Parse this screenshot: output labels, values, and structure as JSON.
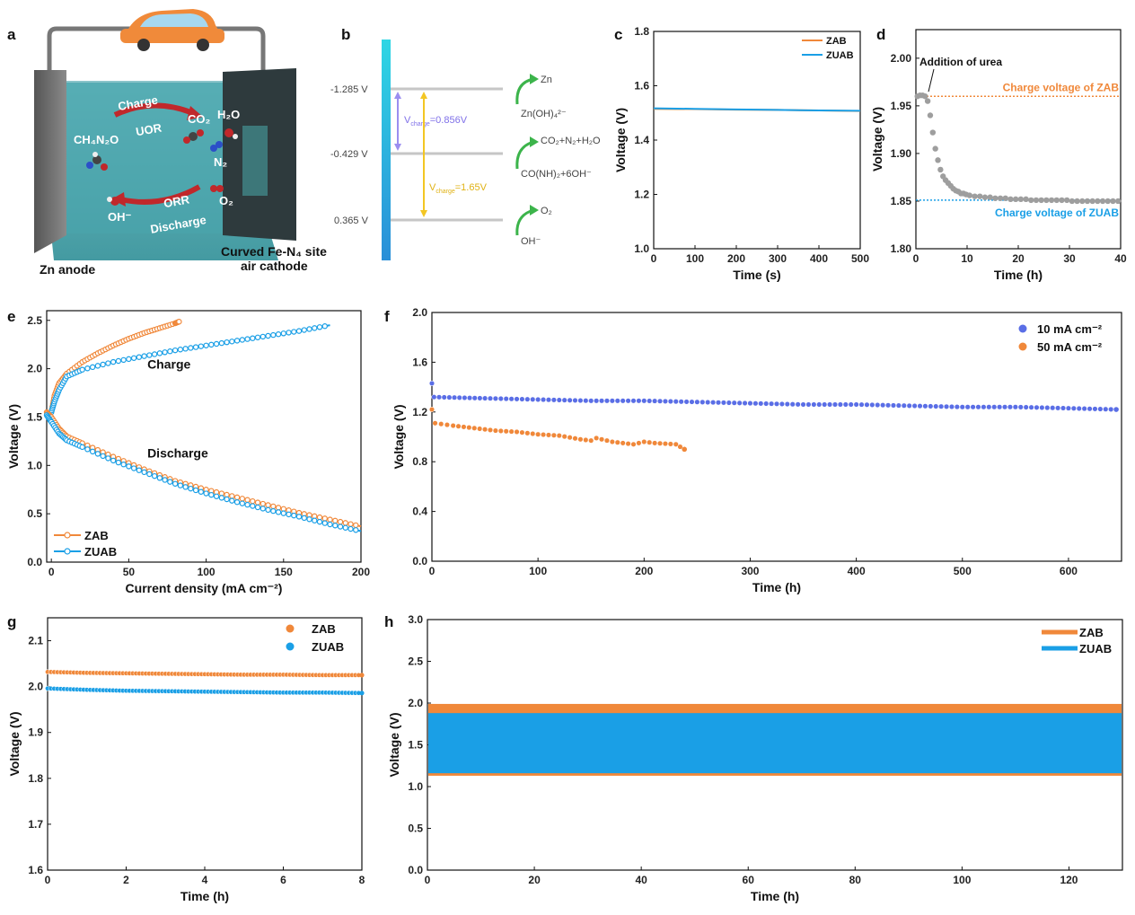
{
  "panel_labels": [
    "a",
    "b",
    "c",
    "d",
    "e",
    "f",
    "g",
    "h"
  ],
  "colors": {
    "zab": "#f0883a",
    "zuab": "#1a9fe6",
    "blue10": "#5a6ee6",
    "grey": "#9e9e9e",
    "yellow": "#f3c623",
    "purple": "#9b8ef0",
    "green": "#3cb44b"
  },
  "schematic": {
    "zn_anode": "Zn anode",
    "cathode_line1": "Curved Fe-N₄ site",
    "cathode_line2": "air cathode",
    "charge": "Charge",
    "uor": "UOR",
    "orr": "ORR",
    "discharge": "Discharge",
    "urea": "CH₄N₂O",
    "co2": "CO₂",
    "h2o": "H₂O",
    "n2": "N₂",
    "o2": "O₂",
    "oh": "OH⁻"
  },
  "energy_diagram": {
    "levels": [
      "-1.285 V",
      "-0.429 V",
      "0.365 V"
    ],
    "v_small_label": "V",
    "v_small_sub": "charge",
    "v_small_value": "=0.856V",
    "v_large_label": "V",
    "v_large_sub": "charge",
    "v_large_value": "=1.65V",
    "r1_top": "Zn",
    "r1_bot": "Zn(OH)₄²⁻",
    "r2_top": "CO₂+N₂+H₂O",
    "r2_bot": "CO(NH)₂+6OH⁻",
    "r3_top": "O₂",
    "r3_bot": "OH⁻"
  },
  "chart_data": [
    {
      "id": "c",
      "type": "line",
      "xlabel": "Time (s)",
      "ylabel": "Voltage (V)",
      "xlim": [
        0,
        500
      ],
      "ylim": [
        1.0,
        1.8
      ],
      "xticks": [
        0,
        100,
        200,
        300,
        400,
        500
      ],
      "yticks": [
        1.0,
        1.2,
        1.4,
        1.6,
        1.8
      ],
      "legend": "top-right",
      "series": [
        {
          "name": "ZAB",
          "x": [
            0,
            100,
            200,
            300,
            400,
            500
          ],
          "y": [
            1.515,
            1.514,
            1.512,
            1.511,
            1.509,
            1.507
          ]
        },
        {
          "name": "ZUAB",
          "x": [
            0,
            100,
            200,
            300,
            400,
            500
          ],
          "y": [
            1.517,
            1.515,
            1.513,
            1.511,
            1.509,
            1.508
          ]
        }
      ]
    },
    {
      "id": "d",
      "type": "scatter",
      "xlabel": "Time (h)",
      "ylabel": "Voltage (V)",
      "xlim": [
        0,
        40
      ],
      "ylim": [
        1.8,
        2.03
      ],
      "xticks": [
        0,
        10,
        20,
        30,
        40
      ],
      "yticks": [
        1.8,
        1.85,
        1.9,
        1.95,
        2.0
      ],
      "annotation": "Addition of urea",
      "ref_lines": [
        {
          "name": "Charge voltage of ZAB",
          "y": 1.96
        },
        {
          "name": "Charge voltage of ZUAB",
          "y": 1.851
        }
      ],
      "series": [
        {
          "name": "data",
          "x": [
            0.3,
            0.8,
            1.3,
            1.8,
            2.3,
            2.8,
            3.3,
            3.8,
            4.3,
            4.8,
            5.3,
            5.8,
            6.3,
            6.8,
            7.3,
            7.8,
            8.3,
            8.8,
            9.3,
            9.8,
            10.5,
            11.5,
            12.5,
            13.5,
            14.5,
            15.5,
            16.5,
            17.5,
            18.5,
            19.5,
            20.5,
            21.5,
            22.5,
            23.5,
            24.5,
            25.5,
            26.5,
            27.5,
            28.5,
            29.5,
            30.5,
            31.5,
            32.5,
            33.5,
            34.5,
            35.5,
            36.5,
            37.5,
            38.5,
            39.5
          ],
          "y": [
            1.96,
            1.961,
            1.961,
            1.96,
            1.955,
            1.94,
            1.922,
            1.905,
            1.893,
            1.883,
            1.876,
            1.872,
            1.869,
            1.866,
            1.863,
            1.861,
            1.86,
            1.858,
            1.858,
            1.857,
            1.856,
            1.855,
            1.855,
            1.854,
            1.854,
            1.853,
            1.853,
            1.853,
            1.852,
            1.852,
            1.852,
            1.852,
            1.851,
            1.851,
            1.851,
            1.851,
            1.851,
            1.851,
            1.851,
            1.851,
            1.85,
            1.85,
            1.85,
            1.85,
            1.85,
            1.85,
            1.85,
            1.85,
            1.85,
            1.85
          ]
        }
      ]
    },
    {
      "id": "e",
      "type": "line",
      "xlabel": "Current density (mA cm⁻²)",
      "ylabel": "Voltage (V)",
      "xlim": [
        -3,
        200
      ],
      "ylim": [
        0.0,
        2.6
      ],
      "xticks": [
        0,
        50,
        100,
        150,
        200
      ],
      "yticks": [
        0.0,
        0.5,
        1.0,
        1.5,
        2.0,
        2.5
      ],
      "legend": "bottom-left",
      "annotations": [
        "Charge",
        "Discharge"
      ],
      "series": [
        {
          "name": "ZAB",
          "branch": "charge",
          "x": [
            0,
            2,
            5,
            10,
            20,
            30,
            40,
            50,
            60,
            70,
            80,
            83
          ],
          "y": [
            1.55,
            1.72,
            1.85,
            1.95,
            2.07,
            2.16,
            2.24,
            2.31,
            2.37,
            2.42,
            2.47,
            2.49
          ]
        },
        {
          "name": "ZUAB",
          "branch": "charge",
          "x": [
            0,
            2,
            5,
            10,
            20,
            40,
            60,
            80,
            100,
            120,
            140,
            160,
            180
          ],
          "y": [
            1.55,
            1.66,
            1.78,
            1.92,
            1.99,
            2.07,
            2.13,
            2.19,
            2.24,
            2.29,
            2.34,
            2.39,
            2.45
          ]
        },
        {
          "name": "ZAB",
          "branch": "discharge",
          "x": [
            -3,
            0,
            5,
            10,
            20,
            40,
            60,
            80,
            100,
            120,
            140,
            160,
            180,
            200
          ],
          "y": [
            1.55,
            1.5,
            1.38,
            1.3,
            1.23,
            1.09,
            0.96,
            0.84,
            0.75,
            0.67,
            0.59,
            0.51,
            0.44,
            0.37
          ]
        },
        {
          "name": "ZUAB",
          "branch": "discharge",
          "x": [
            -3,
            0,
            5,
            10,
            20,
            40,
            60,
            80,
            100,
            120,
            140,
            160,
            180,
            200
          ],
          "y": [
            1.52,
            1.45,
            1.33,
            1.26,
            1.19,
            1.05,
            0.93,
            0.81,
            0.71,
            0.62,
            0.54,
            0.47,
            0.39,
            0.32
          ]
        }
      ]
    },
    {
      "id": "f",
      "type": "scatter",
      "xlabel": "Time (h)",
      "ylabel": "Voltage (V)",
      "xlim": [
        0,
        650
      ],
      "ylim": [
        0.0,
        2.0
      ],
      "xticks": [
        0,
        100,
        200,
        300,
        400,
        500,
        600
      ],
      "yticks": [
        0.0,
        0.4,
        0.8,
        1.2,
        1.6,
        2.0
      ],
      "legend": "top-right",
      "series": [
        {
          "name": "10 mA cm⁻²",
          "x": [
            0,
            2,
            50,
            100,
            150,
            200,
            250,
            300,
            350,
            400,
            450,
            500,
            550,
            600,
            645
          ],
          "y": [
            1.43,
            1.32,
            1.31,
            1.3,
            1.29,
            1.29,
            1.28,
            1.27,
            1.26,
            1.26,
            1.25,
            1.24,
            1.24,
            1.23,
            1.22
          ]
        },
        {
          "name": "50 mA cm⁻²",
          "x": [
            0,
            3,
            20,
            40,
            60,
            80,
            100,
            120,
            140,
            150,
            155,
            170,
            190,
            200,
            210,
            230,
            238
          ],
          "y": [
            1.22,
            1.11,
            1.09,
            1.07,
            1.05,
            1.04,
            1.02,
            1.01,
            0.98,
            0.97,
            0.99,
            0.96,
            0.94,
            0.96,
            0.95,
            0.94,
            0.9
          ]
        }
      ]
    },
    {
      "id": "g",
      "type": "scatter",
      "xlabel": "Time (h)",
      "ylabel": "Voltage (V)",
      "xlim": [
        0,
        8
      ],
      "ylim": [
        1.6,
        2.15
      ],
      "xticks": [
        0,
        2,
        4,
        6,
        8
      ],
      "yticks": [
        1.6,
        1.7,
        1.8,
        1.9,
        2.0,
        2.1
      ],
      "legend": "top-right",
      "series": [
        {
          "name": "ZAB",
          "x": [
            0,
            1,
            2,
            3,
            4,
            5,
            6,
            7,
            8
          ],
          "y": [
            2.032,
            2.03,
            2.029,
            2.028,
            2.027,
            2.026,
            2.026,
            2.025,
            2.025
          ]
        },
        {
          "name": "ZUAB",
          "x": [
            0,
            1,
            2,
            3,
            4,
            5,
            6,
            7,
            8
          ],
          "y": [
            1.996,
            1.993,
            1.991,
            1.99,
            1.989,
            1.988,
            1.987,
            1.987,
            1.986
          ]
        }
      ]
    },
    {
      "id": "h",
      "type": "area",
      "xlabel": "Time (h)",
      "ylabel": "Voltage (V)",
      "xlim": [
        0,
        130
      ],
      "ylim": [
        0.0,
        3.0
      ],
      "xticks": [
        0,
        20,
        40,
        60,
        80,
        100,
        120
      ],
      "yticks": [
        0.0,
        0.5,
        1.0,
        1.5,
        2.0,
        2.5,
        3.0
      ],
      "legend": "top-right",
      "series": [
        {
          "name": "ZAB",
          "charge_upper": 1.99,
          "discharge_lower": 1.13
        },
        {
          "name": "ZUAB",
          "charge_upper": 1.88,
          "discharge_lower": 1.16
        }
      ]
    }
  ]
}
